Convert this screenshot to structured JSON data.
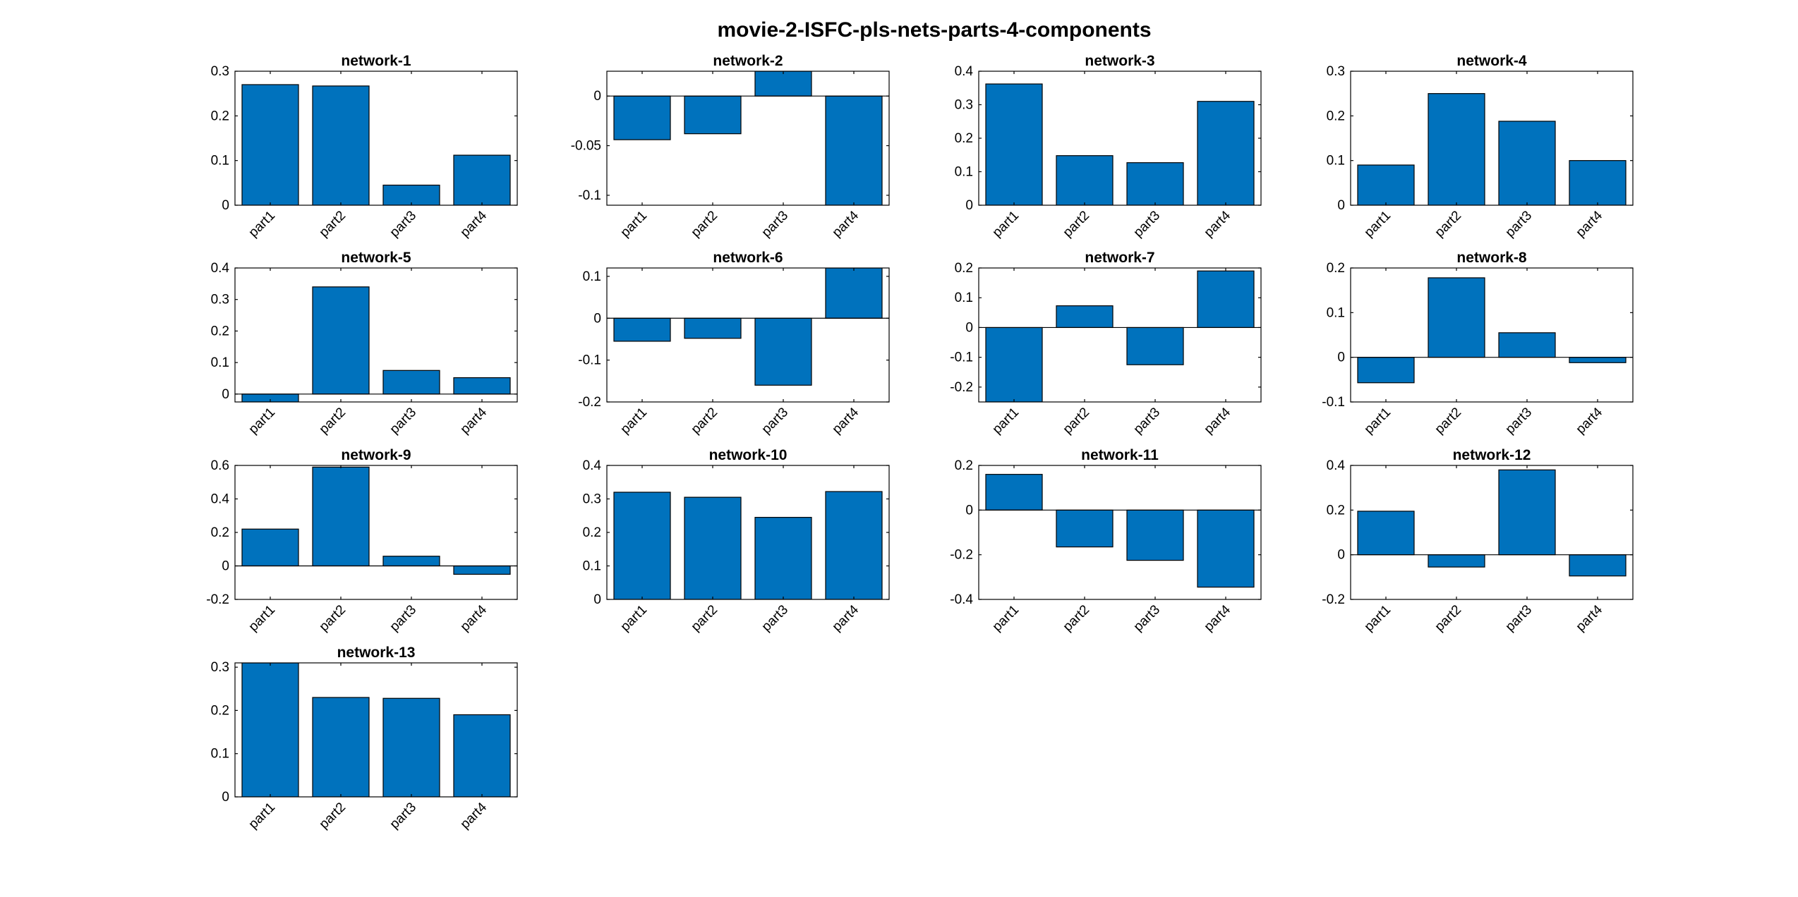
{
  "title": "movie-2-ISFC-pls-nets-parts-4-components",
  "colors": {
    "bar": "#0072BD",
    "axis": "#000000",
    "background": "#ffffff"
  },
  "chart_data": [
    {
      "type": "bar",
      "title": "network-1",
      "categories": [
        "part1",
        "part2",
        "part3",
        "part4"
      ],
      "values": [
        0.27,
        0.267,
        0.045,
        0.112
      ],
      "ylim": [
        0,
        0.3
      ],
      "yticks": [
        0,
        0.1,
        0.2,
        0.3
      ],
      "ytick_labels": [
        "0",
        "0.1",
        "0.2",
        "0.3"
      ]
    },
    {
      "type": "bar",
      "title": "network-2",
      "categories": [
        "part1",
        "part2",
        "part3",
        "part4"
      ],
      "values": [
        -0.044,
        -0.038,
        0.025,
        -0.11
      ],
      "ylim": [
        -0.11,
        0.025
      ],
      "yticks": [
        -0.1,
        -0.05,
        0
      ],
      "ytick_labels": [
        "-0.1",
        "-0.05",
        "0"
      ]
    },
    {
      "type": "bar",
      "title": "network-3",
      "categories": [
        "part1",
        "part2",
        "part3",
        "part4"
      ],
      "values": [
        0.362,
        0.148,
        0.127,
        0.31
      ],
      "ylim": [
        0,
        0.4
      ],
      "yticks": [
        0,
        0.1,
        0.2,
        0.3,
        0.4
      ],
      "ytick_labels": [
        "0",
        "0.1",
        "0.2",
        "0.3",
        "0.4"
      ]
    },
    {
      "type": "bar",
      "title": "network-4",
      "categories": [
        "part1",
        "part2",
        "part3",
        "part4"
      ],
      "values": [
        0.09,
        0.25,
        0.188,
        0.1
      ],
      "ylim": [
        0,
        0.3
      ],
      "yticks": [
        0,
        0.1,
        0.2,
        0.3
      ],
      "ytick_labels": [
        "0",
        "0.1",
        "0.2",
        "0.3"
      ]
    },
    {
      "type": "bar",
      "title": "network-5",
      "categories": [
        "part1",
        "part2",
        "part3",
        "part4"
      ],
      "values": [
        -0.025,
        0.34,
        0.075,
        0.052
      ],
      "ylim": [
        -0.025,
        0.4
      ],
      "yticks": [
        0,
        0.1,
        0.2,
        0.3,
        0.4
      ],
      "ytick_labels": [
        "0",
        "0.1",
        "0.2",
        "0.3",
        "0.4"
      ]
    },
    {
      "type": "bar",
      "title": "network-6",
      "categories": [
        "part1",
        "part2",
        "part3",
        "part4"
      ],
      "values": [
        -0.055,
        -0.048,
        -0.16,
        0.12
      ],
      "ylim": [
        -0.2,
        0.12
      ],
      "yticks": [
        -0.2,
        -0.1,
        0,
        0.1
      ],
      "ytick_labels": [
        "-0.2",
        "-0.1",
        "0",
        "0.1"
      ]
    },
    {
      "type": "bar",
      "title": "network-7",
      "categories": [
        "part1",
        "part2",
        "part3",
        "part4"
      ],
      "values": [
        -0.25,
        0.073,
        -0.125,
        0.19
      ],
      "ylim": [
        -0.25,
        0.2
      ],
      "yticks": [
        -0.2,
        -0.1,
        0,
        0.1,
        0.2
      ],
      "ytick_labels": [
        "-0.2",
        "-0.1",
        "0",
        "0.1",
        "0.2"
      ]
    },
    {
      "type": "bar",
      "title": "network-8",
      "categories": [
        "part1",
        "part2",
        "part3",
        "part4"
      ],
      "values": [
        -0.057,
        0.178,
        0.055,
        -0.012
      ],
      "ylim": [
        -0.1,
        0.2
      ],
      "yticks": [
        -0.1,
        0,
        0.1,
        0.2
      ],
      "ytick_labels": [
        "-0.1",
        "0",
        "0.1",
        "0.2"
      ]
    },
    {
      "type": "bar",
      "title": "network-9",
      "categories": [
        "part1",
        "part2",
        "part3",
        "part4"
      ],
      "values": [
        0.22,
        0.59,
        0.058,
        -0.05
      ],
      "ylim": [
        -0.2,
        0.6
      ],
      "yticks": [
        -0.2,
        0,
        0.2,
        0.4,
        0.6
      ],
      "ytick_labels": [
        "-0.2",
        "0",
        "0.2",
        "0.4",
        "0.6"
      ]
    },
    {
      "type": "bar",
      "title": "network-10",
      "categories": [
        "part1",
        "part2",
        "part3",
        "part4"
      ],
      "values": [
        0.32,
        0.305,
        0.245,
        0.322
      ],
      "ylim": [
        0,
        0.4
      ],
      "yticks": [
        0,
        0.1,
        0.2,
        0.3,
        0.4
      ],
      "ytick_labels": [
        "0",
        "0.1",
        "0.2",
        "0.3",
        "0.4"
      ]
    },
    {
      "type": "bar",
      "title": "network-11",
      "categories": [
        "part1",
        "part2",
        "part3",
        "part4"
      ],
      "values": [
        0.16,
        -0.165,
        -0.225,
        -0.345
      ],
      "ylim": [
        -0.4,
        0.2
      ],
      "yticks": [
        -0.4,
        -0.2,
        0,
        0.2
      ],
      "ytick_labels": [
        "-0.4",
        "-0.2",
        "0",
        "0.2"
      ]
    },
    {
      "type": "bar",
      "title": "network-12",
      "categories": [
        "part1",
        "part2",
        "part3",
        "part4"
      ],
      "values": [
        0.195,
        -0.055,
        0.38,
        -0.095
      ],
      "ylim": [
        -0.2,
        0.4
      ],
      "yticks": [
        -0.2,
        0,
        0.2,
        0.4
      ],
      "ytick_labels": [
        "-0.2",
        "0",
        "0.2",
        "0.4"
      ]
    },
    {
      "type": "bar",
      "title": "network-13",
      "categories": [
        "part1",
        "part2",
        "part3",
        "part4"
      ],
      "values": [
        0.31,
        0.23,
        0.228,
        0.19
      ],
      "ylim": [
        0,
        0.31
      ],
      "yticks": [
        0,
        0.1,
        0.2,
        0.3
      ],
      "ytick_labels": [
        "0",
        "0.1",
        "0.2",
        "0.3"
      ]
    }
  ]
}
